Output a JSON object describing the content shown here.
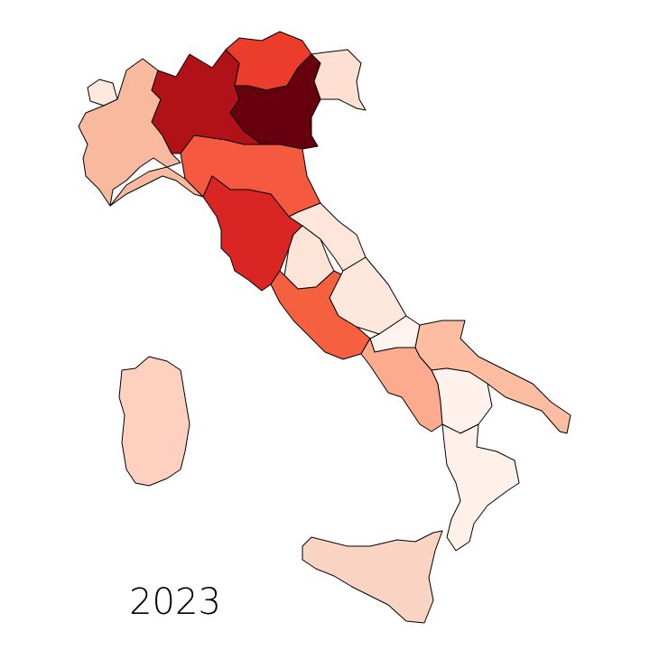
{
  "map": {
    "label": "2023"
  }
}
